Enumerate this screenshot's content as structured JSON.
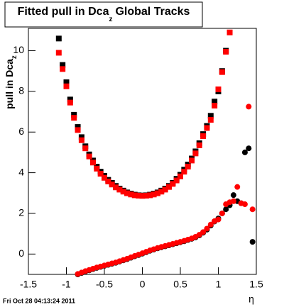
{
  "chart_data": {
    "type": "scatter",
    "title": "Fitted pull in Dca",
    "title_subscript": "z",
    "title_suffix": "Global Tracks",
    "y_label": "pull in Dca",
    "y_label_subscript": "z",
    "x_label": "η",
    "footer": "Fri Oct 28 04:13:24 2011",
    "xlim": [
      -1.5,
      1.5
    ],
    "ylim": [
      -1.0,
      11.1
    ],
    "xticks": [
      -1.5,
      -1,
      -0.5,
      0,
      0.5,
      1,
      1.5
    ],
    "yticks": [
      0,
      2,
      4,
      6,
      8,
      10
    ],
    "series": [
      {
        "color": "#000000",
        "marker": "square",
        "x": [
          -1.1,
          -1.05,
          -1,
          -0.95,
          -0.9,
          -0.85,
          -0.8,
          -0.75,
          -0.7,
          -0.65,
          -0.6,
          -0.55,
          -0.5,
          -0.45,
          -0.4,
          -0.35,
          -0.3,
          -0.25,
          -0.2,
          -0.15,
          -0.1,
          -0.05,
          0,
          0.05,
          0.1,
          0.15,
          0.2,
          0.25,
          0.3,
          0.35,
          0.4,
          0.45,
          0.5,
          0.55,
          0.6,
          0.65,
          0.7,
          0.75,
          0.8,
          0.85,
          0.9,
          0.95,
          1,
          1.05,
          1.1,
          1.15
        ],
        "values": [
          10.6,
          9.3,
          8.45,
          7.6,
          6.85,
          6.25,
          5.75,
          5.3,
          4.9,
          4.6,
          4.3,
          4.05,
          3.85,
          3.65,
          3.5,
          3.35,
          3.22,
          3.12,
          3.03,
          2.97,
          2.92,
          2.89,
          2.88,
          2.89,
          2.92,
          2.97,
          3.03,
          3.12,
          3.22,
          3.35,
          3.5,
          3.7,
          3.9,
          4.15,
          4.4,
          4.7,
          5.05,
          5.45,
          5.9,
          6.3,
          6.8,
          7.5,
          8.0,
          9.0,
          10.0,
          null
        ]
      },
      {
        "color": "#ff0000",
        "marker": "square",
        "x": [
          -1.1,
          -1.05,
          -1,
          -0.95,
          -0.9,
          -0.85,
          -0.8,
          -0.75,
          -0.7,
          -0.65,
          -0.6,
          -0.55,
          -0.5,
          -0.45,
          -0.4,
          -0.35,
          -0.3,
          -0.25,
          -0.2,
          -0.15,
          -0.1,
          -0.05,
          0,
          0.05,
          0.1,
          0.15,
          0.2,
          0.25,
          0.3,
          0.35,
          0.4,
          0.45,
          0.5,
          0.55,
          0.6,
          0.65,
          0.7,
          0.75,
          0.8,
          0.85,
          0.9,
          0.95,
          1,
          1.05,
          1.1,
          1.15
        ],
        "values": [
          9.9,
          9.1,
          8.25,
          7.45,
          6.7,
          6.1,
          5.6,
          5.2,
          4.8,
          4.5,
          4.2,
          3.95,
          3.75,
          3.57,
          3.42,
          3.28,
          3.17,
          3.07,
          2.99,
          2.93,
          2.89,
          2.87,
          2.86,
          2.87,
          2.89,
          2.93,
          2.99,
          3.07,
          3.17,
          3.3,
          3.45,
          3.62,
          3.82,
          4.05,
          4.3,
          4.6,
          4.95,
          5.35,
          5.8,
          6.2,
          6.6,
          7.3,
          8.1,
          8.95,
          9.95,
          10.9
        ]
      },
      {
        "color": "#000000",
        "marker": "circle",
        "x": [
          -0.85,
          -0.8,
          -0.75,
          -0.7,
          -0.65,
          -0.6,
          -0.55,
          -0.5,
          -0.45,
          -0.4,
          -0.35,
          -0.3,
          -0.25,
          -0.2,
          -0.15,
          -0.1,
          -0.05,
          0,
          0.05,
          0.1,
          0.15,
          0.2,
          0.25,
          0.3,
          0.35,
          0.4,
          0.45,
          0.5,
          0.55,
          0.6,
          0.65,
          0.7,
          0.75,
          0.8,
          0.85,
          0.9,
          0.95,
          1,
          1.05,
          1.1,
          1.15,
          1.2,
          1.25,
          1.3,
          1.35,
          1.4,
          1.45
        ],
        "values": [
          -1.0,
          -0.93,
          -0.86,
          -0.8,
          -0.74,
          -0.68,
          -0.63,
          -0.58,
          -0.53,
          -0.48,
          -0.43,
          -0.37,
          -0.31,
          -0.25,
          -0.18,
          -0.11,
          -0.05,
          0.02,
          0.09,
          0.16,
          0.22,
          0.28,
          0.33,
          0.38,
          0.43,
          0.48,
          0.53,
          0.58,
          0.63,
          0.69,
          0.75,
          0.82,
          0.92,
          1.05,
          1.2,
          1.4,
          1.6,
          1.75,
          2.0,
          2.2,
          2.4,
          2.9,
          2.6,
          2.5,
          5.0,
          5.2,
          0.6
        ]
      },
      {
        "color": "#ff0000",
        "marker": "circle",
        "x": [
          -0.85,
          -0.8,
          -0.75,
          -0.7,
          -0.65,
          -0.6,
          -0.55,
          -0.5,
          -0.45,
          -0.4,
          -0.35,
          -0.3,
          -0.25,
          -0.2,
          -0.15,
          -0.1,
          -0.05,
          0,
          0.05,
          0.1,
          0.15,
          0.2,
          0.25,
          0.3,
          0.35,
          0.4,
          0.45,
          0.5,
          0.55,
          0.6,
          0.65,
          0.7,
          0.75,
          0.8,
          0.85,
          0.9,
          0.95,
          1,
          1.05,
          1.1,
          1.15,
          1.2,
          1.25,
          1.3,
          1.35,
          1.4,
          1.45
        ],
        "values": [
          -0.98,
          -0.91,
          -0.84,
          -0.78,
          -0.72,
          -0.66,
          -0.61,
          -0.56,
          -0.51,
          -0.46,
          -0.41,
          -0.35,
          -0.29,
          -0.23,
          -0.16,
          -0.09,
          -0.03,
          0.04,
          0.11,
          0.18,
          0.24,
          0.3,
          0.35,
          0.4,
          0.45,
          0.5,
          0.55,
          0.6,
          0.65,
          0.71,
          0.77,
          0.85,
          0.95,
          1.08,
          1.25,
          1.45,
          1.62,
          1.7,
          2.0,
          2.45,
          2.55,
          2.6,
          3.3,
          2.5,
          2.45,
          7.25,
          2.2
        ]
      }
    ]
  }
}
